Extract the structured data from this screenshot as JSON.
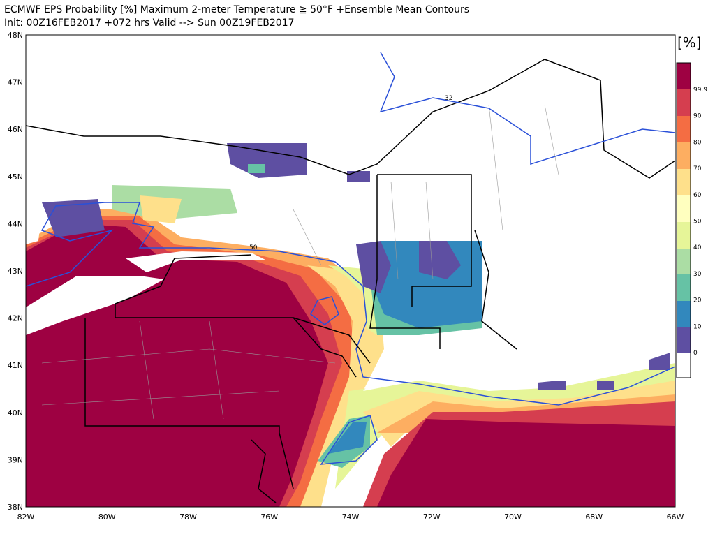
{
  "header": {
    "title": "ECMWF EPS Probability [%] Maximum 2-meter Temperature ≧ 50°F   +Ensemble Mean Contours",
    "subtitle": "Init: 00Z16FEB2017 +072 hrs Valid --> Sun 00Z19FEB2017"
  },
  "axes": {
    "lon_labels": [
      "82W",
      "80W",
      "78W",
      "76W",
      "74W",
      "72W",
      "70W",
      "68W",
      "66W"
    ],
    "lat_labels": [
      "48N",
      "47N",
      "46N",
      "45N",
      "44N",
      "43N",
      "42N",
      "41N",
      "40N",
      "39N",
      "38N"
    ]
  },
  "colorbar": {
    "unit": "[%]",
    "labels": [
      "99.9",
      "90",
      "80",
      "70",
      "60",
      "50",
      "40",
      "30",
      "20",
      "10",
      "0"
    ]
  },
  "contour_labels": [
    "32",
    "50"
  ]
}
